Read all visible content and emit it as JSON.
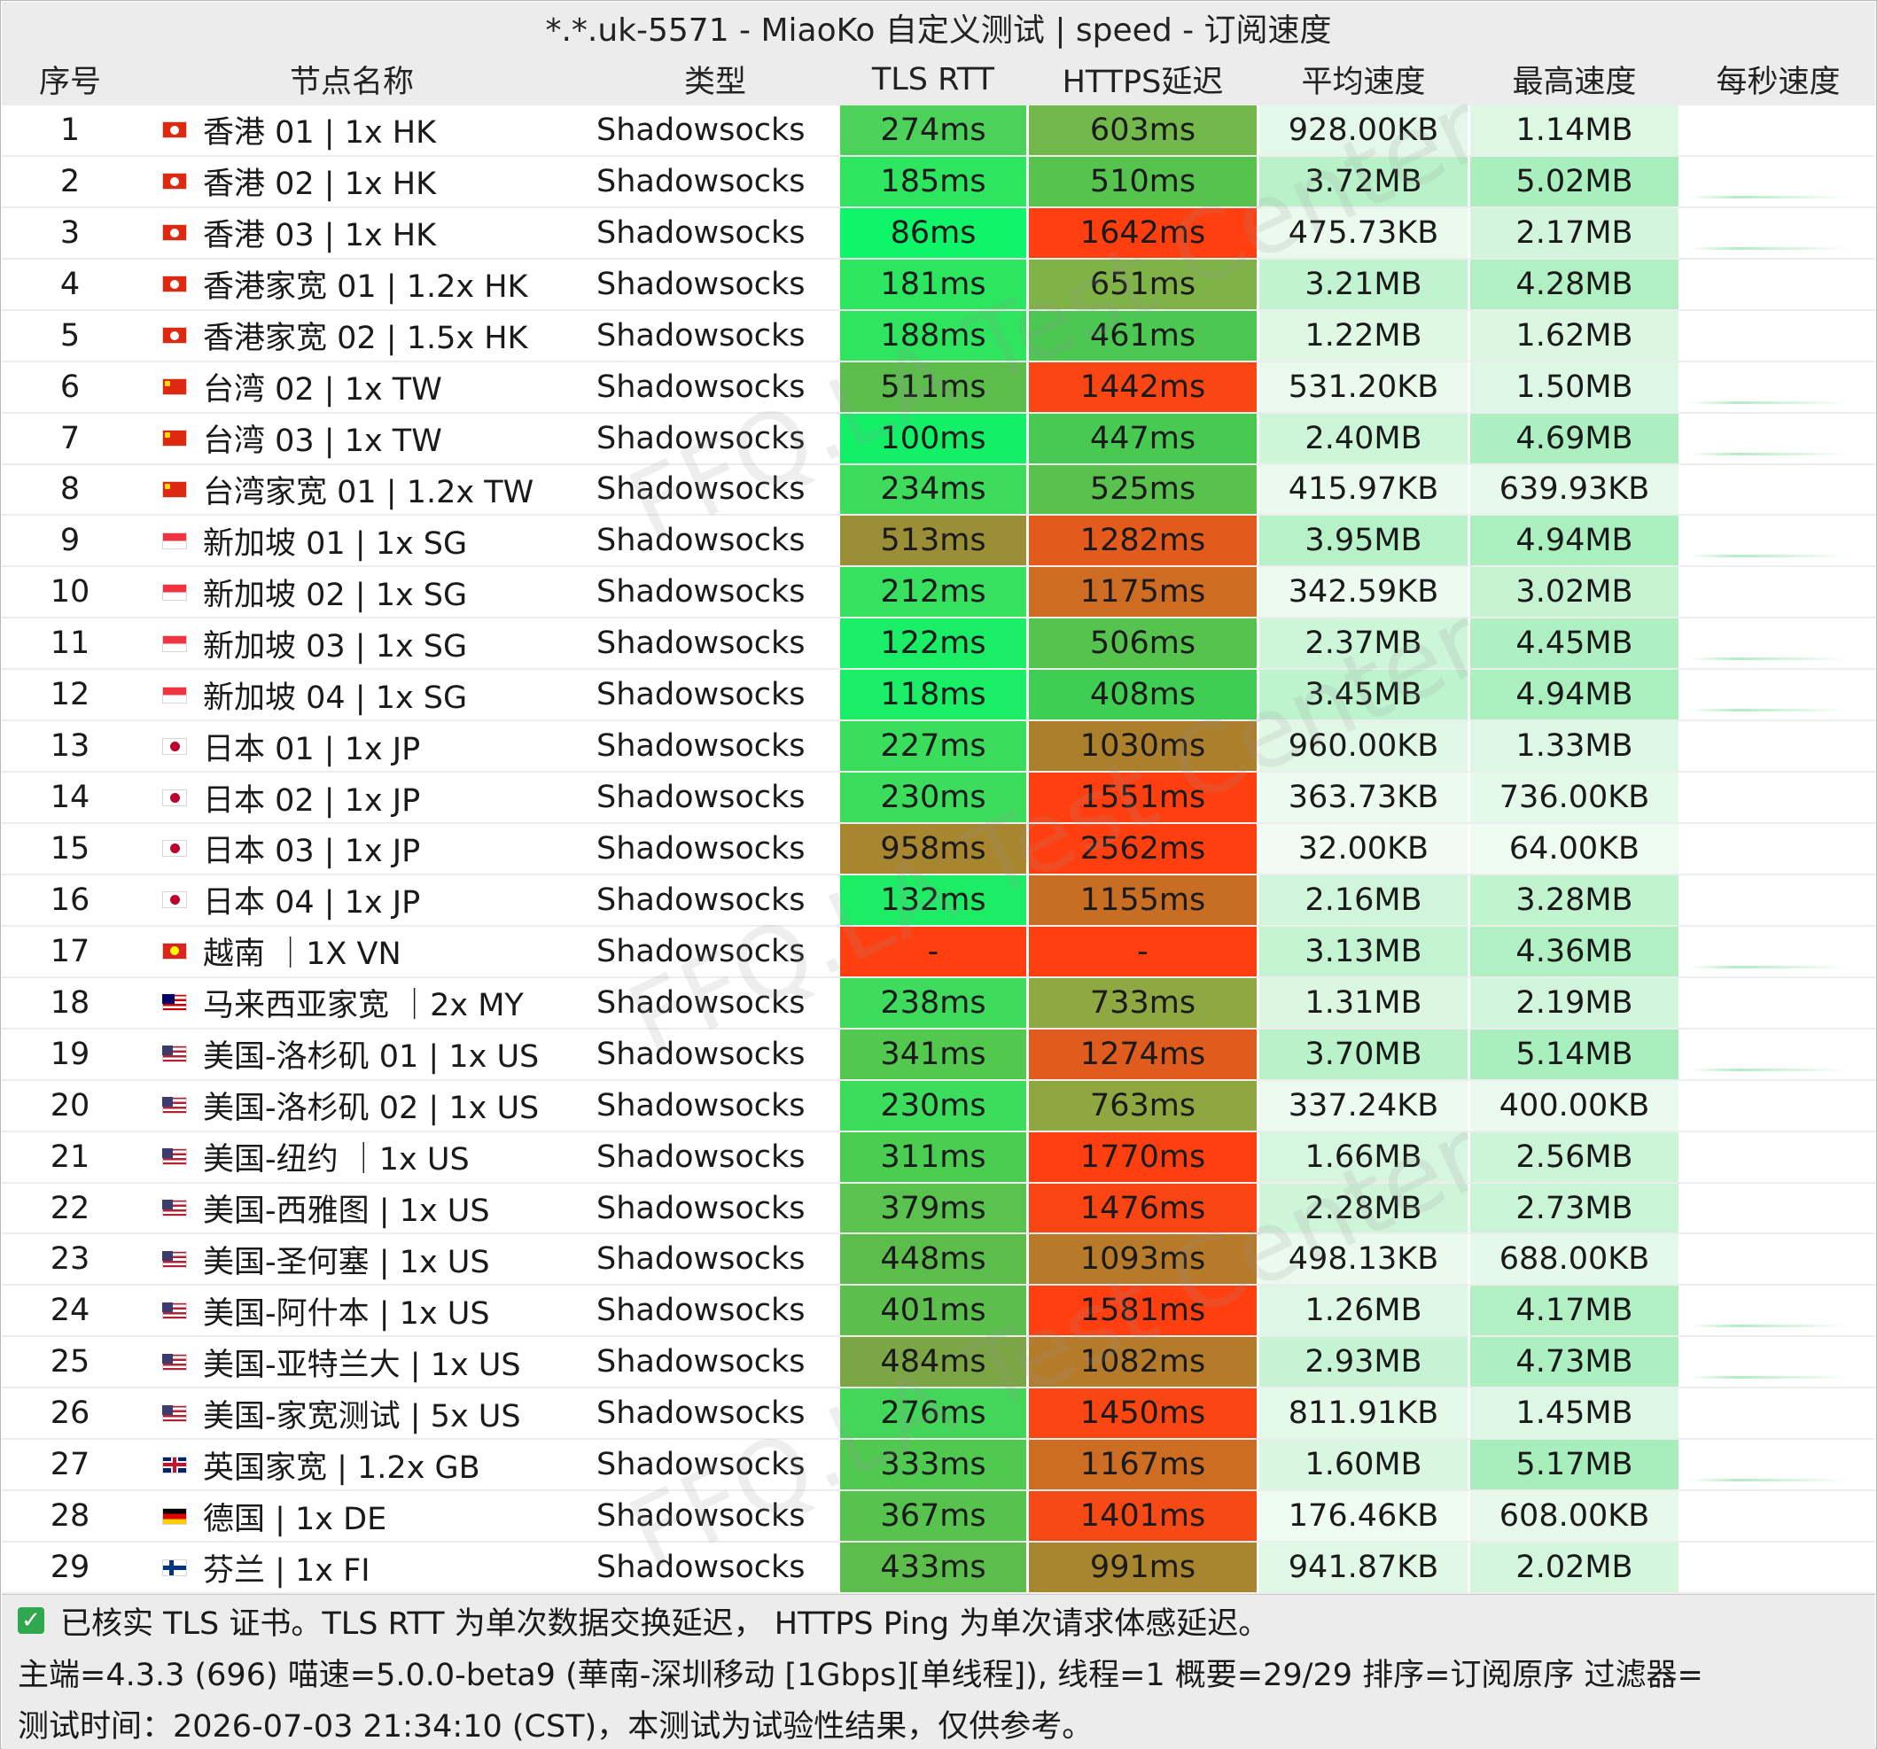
{
  "window": {
    "title": "*.*.uk-5571 - MiaoKo 自定义测试 | speed - 订阅速度"
  },
  "columns": {
    "index": "序号",
    "name": "节点名称",
    "type": "类型",
    "tls_rtt": "TLS RTT",
    "https_delay": "HTTPS延迟",
    "avg_speed": "平均速度",
    "max_speed": "最高速度",
    "per_second": "每秒速度"
  },
  "colors": {
    "header_bg": "#ececec",
    "fast_green": "#13f06a",
    "mid_green": "#5ec44e",
    "olive": "#a8862f",
    "red": "#ff3f10",
    "speed_light": "#e6f9ea",
    "speed_mid": "#bff4cf"
  },
  "rows": [
    {
      "index": "1",
      "flag": "hk",
      "name": "香港 01 | 1x HK",
      "type": "Shadowsocks",
      "tls": "274ms",
      "https": "603ms",
      "avg": "928.00KB",
      "max": "1.14MB",
      "tls_color": "#4cd25a",
      "https_color": "#73b84a",
      "avg_color": "#e3f8e8",
      "max_color": "#dcf7e2",
      "spark": false
    },
    {
      "index": "2",
      "flag": "hk",
      "name": "香港 02 | 1x HK",
      "type": "Shadowsocks",
      "tls": "185ms",
      "https": "510ms",
      "avg": "3.72MB",
      "max": "5.02MB",
      "tls_color": "#2ee55f",
      "https_color": "#55c34e",
      "avg_color": "#b9f2c9",
      "max_color": "#a9efbe",
      "spark": true
    },
    {
      "index": "3",
      "flag": "hk",
      "name": "香港 03 | 1x HK",
      "type": "Shadowsocks",
      "tls": "86ms",
      "https": "1642ms",
      "avg": "475.73KB",
      "max": "2.17MB",
      "tls_color": "#0ff56a",
      "https_color": "#ff3f10",
      "avg_color": "#eafaed",
      "max_color": "#d2f5dc",
      "spark": true
    },
    {
      "index": "4",
      "flag": "hk",
      "name": "香港家宽 01 | 1.2x HK",
      "type": "Shadowsocks",
      "tls": "181ms",
      "https": "651ms",
      "avg": "3.21MB",
      "max": "4.28MB",
      "tls_color": "#2de65f",
      "https_color": "#7fb247",
      "avg_color": "#c2f3d0",
      "max_color": "#b0f0c3",
      "spark": false
    },
    {
      "index": "5",
      "flag": "hk",
      "name": "香港家宽 02 | 1.5x HK",
      "type": "Shadowsocks",
      "tls": "188ms",
      "https": "461ms",
      "avg": "1.22MB",
      "max": "1.62MB",
      "tls_color": "#2fe55f",
      "https_color": "#4bc752",
      "avg_color": "#def8e4",
      "max_color": "#dbf7e2",
      "spark": false
    },
    {
      "index": "6",
      "flag": "cn",
      "name": "台湾 02 | 1x TW",
      "type": "Shadowsocks",
      "tls": "511ms",
      "https": "1442ms",
      "avg": "531.20KB",
      "max": "1.50MB",
      "tls_color": "#5cbd4d",
      "https_color": "#fa4514",
      "avg_color": "#e9faed",
      "max_color": "#dcf7e3",
      "spark": true
    },
    {
      "index": "7",
      "flag": "cn",
      "name": "台湾 03 | 1x TW",
      "type": "Shadowsocks",
      "tls": "100ms",
      "https": "447ms",
      "avg": "2.40MB",
      "max": "4.69MB",
      "tls_color": "#13f068",
      "https_color": "#47c952",
      "avg_color": "#cdf5d8",
      "max_color": "#adefc1",
      "spark": true
    },
    {
      "index": "8",
      "flag": "cn",
      "name": "台湾家宽 01 | 1.2x TW",
      "type": "Shadowsocks",
      "tls": "234ms",
      "https": "525ms",
      "avg": "415.97KB",
      "max": "639.93KB",
      "tls_color": "#3ddc5c",
      "https_color": "#59c14e",
      "avg_color": "#ebfaef",
      "max_color": "#e6f9ea",
      "spark": false
    },
    {
      "index": "9",
      "flag": "sg",
      "name": "新加坡 01 | 1x SG",
      "type": "Shadowsocks",
      "tls": "513ms",
      "https": "1282ms",
      "avg": "3.95MB",
      "max": "4.94MB",
      "tls_color": "#9a8f36",
      "https_color": "#e35a1d",
      "avg_color": "#b6f1c7",
      "max_color": "#aaefbe",
      "spark": true
    },
    {
      "index": "10",
      "flag": "sg",
      "name": "新加坡 02 | 1x SG",
      "type": "Shadowsocks",
      "tls": "212ms",
      "https": "1175ms",
      "avg": "342.59KB",
      "max": "3.02MB",
      "tls_color": "#37e05e",
      "https_color": "#cd6c22",
      "avg_color": "#ecfaef",
      "max_color": "#c5f3d2",
      "spark": false
    },
    {
      "index": "11",
      "flag": "sg",
      "name": "新加坡 03 | 1x SG",
      "type": "Shadowsocks",
      "tls": "122ms",
      "https": "506ms",
      "avg": "2.37MB",
      "max": "4.45MB",
      "tls_color": "#1aee66",
      "https_color": "#55c34e",
      "avg_color": "#cdf5d8",
      "max_color": "#aff0c2",
      "spark": true
    },
    {
      "index": "12",
      "flag": "sg",
      "name": "新加坡 04 | 1x SG",
      "type": "Shadowsocks",
      "tls": "118ms",
      "https": "408ms",
      "avg": "3.45MB",
      "max": "4.94MB",
      "tls_color": "#19ee66",
      "https_color": "#3fcd54",
      "avg_color": "#bdf3cd",
      "max_color": "#aaefbe",
      "spark": true
    },
    {
      "index": "13",
      "flag": "jp",
      "name": "日本 01 | 1x JP",
      "type": "Shadowsocks",
      "tls": "227ms",
      "https": "1030ms",
      "avg": "960.00KB",
      "max": "1.33MB",
      "tls_color": "#3bdd5c",
      "https_color": "#ac7f2c",
      "avg_color": "#e2f8e7",
      "max_color": "#dcf7e3",
      "spark": false
    },
    {
      "index": "14",
      "flag": "jp",
      "name": "日本 02 | 1x JP",
      "type": "Shadowsocks",
      "tls": "230ms",
      "https": "1551ms",
      "avg": "363.73KB",
      "max": "736.00KB",
      "tls_color": "#3cdc5c",
      "https_color": "#ff3f10",
      "avg_color": "#ecfaef",
      "max_color": "#e5f9e9",
      "spark": false
    },
    {
      "index": "15",
      "flag": "jp",
      "name": "日本 03 | 1x JP",
      "type": "Shadowsocks",
      "tls": "958ms",
      "https": "2562ms",
      "avg": "32.00KB",
      "max": "64.00KB",
      "tls_color": "#a8862f",
      "https_color": "#ff3f10",
      "avg_color": "#f1fbf3",
      "max_color": "#eefbf1",
      "spark": false
    },
    {
      "index": "16",
      "flag": "jp",
      "name": "日本 04 | 1x JP",
      "type": "Shadowsocks",
      "tls": "132ms",
      "https": "1155ms",
      "avg": "2.16MB",
      "max": "3.28MB",
      "tls_color": "#1ded65",
      "https_color": "#c86e24",
      "avg_color": "#d1f5db",
      "max_color": "#c1f3cf",
      "spark": false
    },
    {
      "index": "17",
      "flag": "vn",
      "name": "越南 ｜1X VN",
      "type": "Shadowsocks",
      "tls": "-",
      "https": "-",
      "avg": "3.13MB",
      "max": "4.36MB",
      "tls_color": "#ff3f10",
      "https_color": "#ff3f10",
      "avg_color": "#c3f3d1",
      "max_color": "#b0f0c3",
      "spark": true
    },
    {
      "index": "18",
      "flag": "my",
      "name": "马来西亚家宽 ｜2x MY",
      "type": "Shadowsocks",
      "tls": "238ms",
      "https": "733ms",
      "avg": "1.31MB",
      "max": "2.19MB",
      "tls_color": "#3edb5c",
      "https_color": "#8ea941",
      "avg_color": "#dbf7e2",
      "max_color": "#d1f5db",
      "spark": false
    },
    {
      "index": "19",
      "flag": "us",
      "name": "美国-洛杉矶 01 | 1x US",
      "type": "Shadowsocks",
      "tls": "341ms",
      "https": "1274ms",
      "avg": "3.70MB",
      "max": "5.14MB",
      "tls_color": "#52c84f",
      "https_color": "#df5c1e",
      "avg_color": "#b9f2c9",
      "max_color": "#a8efbd",
      "spark": true
    },
    {
      "index": "20",
      "flag": "us",
      "name": "美国-洛杉矶 02 | 1x US",
      "type": "Shadowsocks",
      "tls": "230ms",
      "https": "763ms",
      "avg": "337.24KB",
      "max": "400.00KB",
      "tls_color": "#3cdc5c",
      "https_color": "#8fa740",
      "avg_color": "#ecfaef",
      "max_color": "#ebfaee",
      "spark": false
    },
    {
      "index": "21",
      "flag": "us",
      "name": "美国-纽约 ｜1x US",
      "type": "Shadowsocks",
      "tls": "311ms",
      "https": "1770ms",
      "avg": "1.66MB",
      "max": "2.56MB",
      "tls_color": "#4bcd51",
      "https_color": "#ff3f10",
      "avg_color": "#d7f6df",
      "max_color": "#ccf5d7",
      "spark": false
    },
    {
      "index": "22",
      "flag": "us",
      "name": "美国-西雅图 | 1x US",
      "type": "Shadowsocks",
      "tls": "379ms",
      "https": "1476ms",
      "avg": "2.28MB",
      "max": "2.73MB",
      "tls_color": "#5ac24e",
      "https_color": "#fb4413",
      "avg_color": "#cff5d9",
      "max_color": "#c9f4d5",
      "spark": false
    },
    {
      "index": "23",
      "flag": "us",
      "name": "美国-圣何塞 | 1x US",
      "type": "Shadowsocks",
      "tls": "448ms",
      "https": "1093ms",
      "avg": "498.13KB",
      "max": "688.00KB",
      "tls_color": "#5cbd4d",
      "https_color": "#b67a29",
      "avg_color": "#eafaed",
      "max_color": "#e5f9ea",
      "spark": false
    },
    {
      "index": "24",
      "flag": "us",
      "name": "美国-阿什本 | 1x US",
      "type": "Shadowsocks",
      "tls": "401ms",
      "https": "1581ms",
      "avg": "1.26MB",
      "max": "4.17MB",
      "tls_color": "#5cbf4d",
      "https_color": "#ff3f10",
      "avg_color": "#dcf7e3",
      "max_color": "#b2f0c4",
      "spark": true
    },
    {
      "index": "25",
      "flag": "us",
      "name": "美国-亚特兰大 | 1x US",
      "type": "Shadowsocks",
      "tls": "484ms",
      "https": "1082ms",
      "avg": "2.93MB",
      "max": "4.73MB",
      "tls_color": "#7ca645",
      "https_color": "#b47b2a",
      "avg_color": "#c6f3d3",
      "max_color": "#acefc0",
      "spark": true
    },
    {
      "index": "26",
      "flag": "us",
      "name": "美国-家宽测试 | 5x US",
      "type": "Shadowsocks",
      "tls": "276ms",
      "https": "1450ms",
      "avg": "811.91KB",
      "max": "1.45MB",
      "tls_color": "#43d759",
      "https_color": "#f94613",
      "avg_color": "#e5f9e9",
      "max_color": "#dcf7e3",
      "spark": false
    },
    {
      "index": "27",
      "flag": "gb",
      "name": "英国家宽 | 1.2x GB",
      "type": "Shadowsocks",
      "tls": "333ms",
      "https": "1167ms",
      "avg": "1.60MB",
      "max": "5.17MB",
      "tls_color": "#50c950",
      "https_color": "#cc6d23",
      "avg_color": "#d9f6e0",
      "max_color": "#a7eebc",
      "spark": true
    },
    {
      "index": "28",
      "flag": "de",
      "name": "德国 | 1x DE",
      "type": "Shadowsocks",
      "tls": "367ms",
      "https": "1401ms",
      "avg": "176.46KB",
      "max": "608.00KB",
      "tls_color": "#57c34e",
      "https_color": "#f64915",
      "avg_color": "#eefbf1",
      "max_color": "#e7f9eb",
      "spark": false
    },
    {
      "index": "29",
      "flag": "fi",
      "name": "芬兰 | 1x FI",
      "type": "Shadowsocks",
      "tls": "433ms",
      "https": "991ms",
      "avg": "941.87KB",
      "max": "2.02MB",
      "tls_color": "#5cbd4d",
      "https_color": "#a8862f",
      "avg_color": "#e2f8e7",
      "max_color": "#d4f6dd",
      "spark": false
    }
  ],
  "footer": {
    "line1": "已核实 TLS 证书。TLS RTT 为单次数据交换延迟， HTTPS Ping 为单次请求体感延迟。",
    "line2": "主端=4.3.3 (696) 喵速=5.0.0-beta9 (華南-深圳移动 [1Gbps][单线程]), 线程=1 概要=29/29 排序=订阅原序 过滤器=",
    "line3": "测试时间：2026-07-03 21:34:10 (CST)，本测试为试验性结果，仅供参考。"
  },
  "watermark": {
    "text": "FFQ.LA Test Center"
  },
  "icons": {
    "check": "check-icon",
    "flags": "flag-icon"
  }
}
